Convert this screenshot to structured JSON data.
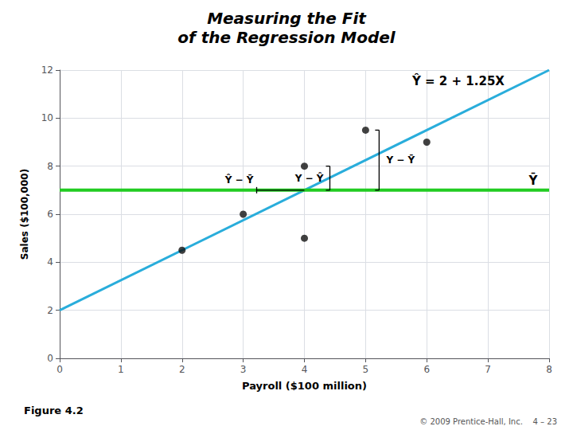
{
  "chart_data": {
    "type": "scatter",
    "title": "Measuring the Fit",
    "subtitle": "of the Regression Model",
    "xlabel": "Payroll ($100 million)",
    "ylabel": "Sales ($100,000)",
    "xlim": [
      0,
      8
    ],
    "ylim": [
      0,
      12
    ],
    "xticks": [
      0,
      1,
      2,
      3,
      4,
      5,
      6,
      7,
      8
    ],
    "yticks": [
      0,
      2,
      4,
      6,
      8,
      10,
      12
    ],
    "grid": true,
    "series": [
      {
        "type": "line",
        "color": "#29ADDB",
        "x": [
          0,
          8
        ],
        "values": [
          2,
          12
        ]
      },
      {
        "type": "line",
        "color": "#22CC22",
        "x": [
          0,
          8
        ],
        "values": [
          7,
          7
        ]
      },
      {
        "type": "scatter",
        "color": "#111111",
        "x": [
          2,
          3,
          4,
          4,
          5,
          6
        ],
        "values": [
          4.5,
          6,
          8,
          5,
          9.5,
          9
        ]
      }
    ],
    "annotations": [
      {
        "text": "Ŷ = 2 + 1.25X"
      },
      {
        "text": "Ȳ"
      },
      {
        "text": "Y − Ŷ",
        "x": 4,
        "from": 7,
        "to": 8
      },
      {
        "text": "Ŷ − Ȳ",
        "x": 4,
        "from": 7,
        "to": 7
      },
      {
        "text": "Y − Ȳ",
        "x": 5,
        "from": 7,
        "to": 9.5
      },
      {
        "text": "Figure 4.2"
      },
      {
        "text": "© 2009 Prentice-Hall, Inc."
      },
      {
        "text": "4 – 23"
      }
    ]
  }
}
